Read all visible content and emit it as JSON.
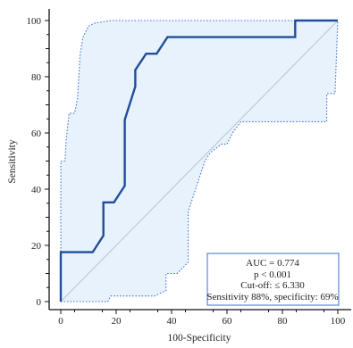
{
  "chart_data": {
    "type": "line",
    "title": "",
    "xlabel": "100-Specificity",
    "ylabel": "Sensitivity",
    "xlim": [
      0,
      100
    ],
    "ylim": [
      0,
      100
    ],
    "x_ticks": [
      "0",
      "20",
      "40",
      "60",
      "80",
      "100"
    ],
    "y_ticks": [
      "0",
      "20",
      "40",
      "60",
      "80",
      "100"
    ],
    "grid": false,
    "series": [
      {
        "role": "roc-curve",
        "color": "#1f4e9c",
        "points": [
          [
            0,
            0
          ],
          [
            0,
            17.6
          ],
          [
            11.5,
            17.6
          ],
          [
            15.4,
            23.5
          ],
          [
            15.4,
            35.3
          ],
          [
            19.2,
            35.3
          ],
          [
            23.1,
            41.2
          ],
          [
            23.1,
            64.7
          ],
          [
            26.9,
            76.5
          ],
          [
            26.9,
            82.4
          ],
          [
            30.8,
            88.2
          ],
          [
            34.6,
            88.2
          ],
          [
            38.5,
            94.1
          ],
          [
            84.6,
            94.1
          ],
          [
            84.6,
            100
          ],
          [
            100,
            100
          ]
        ]
      },
      {
        "role": "ci-upper",
        "color": "#3a6fd8",
        "points": [
          [
            0,
            0
          ],
          [
            0,
            50
          ],
          [
            1.5,
            50
          ],
          [
            2,
            58
          ],
          [
            3,
            67
          ],
          [
            5,
            67
          ],
          [
            6,
            72
          ],
          [
            6.5,
            80
          ],
          [
            7,
            88
          ],
          [
            8,
            94
          ],
          [
            10,
            98
          ],
          [
            12,
            99
          ],
          [
            18,
            100
          ],
          [
            100,
            100
          ]
        ]
      },
      {
        "role": "ci-lower",
        "color": "#3a6fd8",
        "points": [
          [
            0,
            0
          ],
          [
            17,
            0
          ],
          [
            18,
            2
          ],
          [
            34,
            2
          ],
          [
            38,
            4
          ],
          [
            38,
            10
          ],
          [
            42,
            10
          ],
          [
            46,
            14
          ],
          [
            46,
            32
          ],
          [
            48,
            38
          ],
          [
            52,
            50
          ],
          [
            54,
            53
          ],
          [
            58,
            56
          ],
          [
            60,
            56
          ],
          [
            62,
            60
          ],
          [
            65,
            64
          ],
          [
            96,
            64
          ],
          [
            96,
            74
          ],
          [
            99,
            74
          ],
          [
            100,
            100
          ]
        ]
      },
      {
        "role": "reference-diagonal",
        "color": "#b8c4cc",
        "points": [
          [
            0,
            0
          ],
          [
            100,
            100
          ]
        ]
      }
    ],
    "fill_color": "#e8f2fd",
    "legend_position": "bottom-right",
    "annotations": [
      "AUC = 0.774",
      "p < 0.001",
      "Cut-off: ≤ 6.330",
      "Sensitivity 88%, specificity: 69%"
    ],
    "annotation_border_color": "#3a6fd8"
  }
}
